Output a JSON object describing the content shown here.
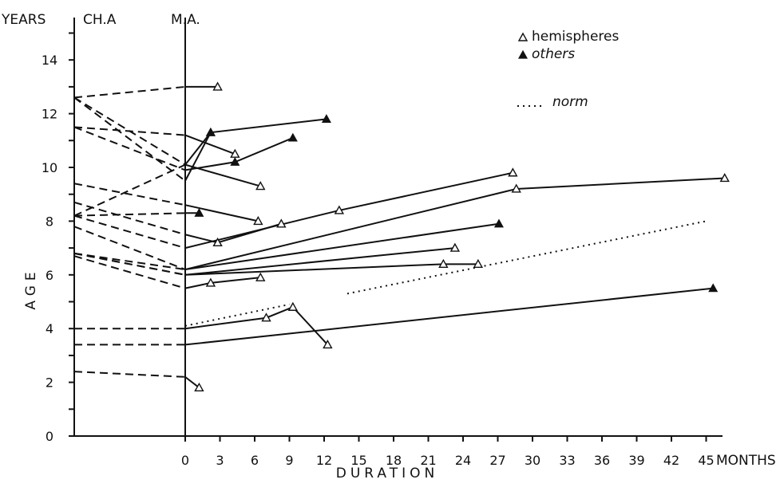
{
  "chart_data": {
    "type": "line",
    "title": "",
    "ylabel": "AGE",
    "ylabel_units": "YEARS",
    "xlabel": "DURATION",
    "xlabel_units": "MONTHS",
    "column_labels": [
      "CH.A",
      "M.A."
    ],
    "ylim": [
      0,
      15
    ],
    "yticks": [
      "0",
      "2",
      "4",
      "6",
      "8",
      "10",
      "12",
      "14"
    ],
    "xlim": [
      0,
      47
    ],
    "xticks": [
      "0",
      "3",
      "6",
      "9",
      "12",
      "15",
      "18",
      "21",
      "24",
      "27",
      "30",
      "33",
      "36",
      "39",
      "42",
      "45"
    ],
    "legend": {
      "position": "top-right",
      "hemispheres": "hemispheres",
      "others": "others",
      "norm": "norm"
    },
    "patients": [
      {
        "ch_a": 12.6,
        "m_a": 13.0,
        "followup": [
          {
            "month": 2.8,
            "age": 13.0,
            "marker": "hemispheres"
          }
        ]
      },
      {
        "ch_a": 12.6,
        "m_a": 10.1,
        "followup": [
          {
            "month": 2.2,
            "age": 11.3,
            "marker": "others"
          },
          {
            "month": 12.2,
            "age": 11.8,
            "marker": "others"
          }
        ]
      },
      {
        "ch_a": 12.6,
        "m_a": 9.5,
        "followup": [
          {
            "month": 2.2,
            "age": 11.3,
            "marker": "others"
          }
        ]
      },
      {
        "ch_a": 11.5,
        "m_a": 11.2,
        "followup": [
          {
            "month": 4.3,
            "age": 10.5,
            "marker": "hemispheres"
          }
        ]
      },
      {
        "ch_a": 11.5,
        "m_a": 9.9,
        "followup": [
          {
            "month": 4.3,
            "age": 10.2,
            "marker": "others"
          },
          {
            "month": 9.3,
            "age": 11.1,
            "marker": "others"
          }
        ]
      },
      {
        "ch_a": 8.2,
        "m_a": 10.1,
        "followup": [
          {
            "month": 6.5,
            "age": 9.3,
            "marker": "hemispheres"
          }
        ]
      },
      {
        "ch_a": 9.4,
        "m_a": 8.6,
        "followup": [
          {
            "month": 6.3,
            "age": 8.0,
            "marker": "hemispheres"
          }
        ]
      },
      {
        "ch_a": 8.2,
        "m_a": 8.3,
        "followup": [
          {
            "month": 1.2,
            "age": 8.3,
            "marker": "others"
          }
        ]
      },
      {
        "ch_a": 8.7,
        "m_a": 7.5,
        "followup": [
          {
            "month": 2.8,
            "age": 7.2,
            "marker": "hemispheres"
          },
          {
            "month": 8.3,
            "age": 7.9,
            "marker": "hemispheres"
          }
        ]
      },
      {
        "ch_a": 8.2,
        "m_a": 7.0,
        "followup": [
          {
            "month": 13.3,
            "age": 8.4,
            "marker": "hemispheres"
          },
          {
            "month": 28.3,
            "age": 9.8,
            "marker": "hemispheres"
          }
        ]
      },
      {
        "ch_a": 7.8,
        "m_a": 6.2,
        "followup": [
          {
            "month": 28.6,
            "age": 9.2,
            "marker": "hemispheres"
          },
          {
            "month": 46.6,
            "age": 9.6,
            "marker": "hemispheres"
          }
        ]
      },
      {
        "ch_a": 6.8,
        "m_a": 6.2,
        "followup": [
          {
            "month": 27.1,
            "age": 7.9,
            "marker": "others"
          }
        ]
      },
      {
        "ch_a": 6.8,
        "m_a": 6.0,
        "followup": [
          {
            "month": 23.3,
            "age": 7.0,
            "marker": "hemispheres"
          }
        ]
      },
      {
        "ch_a": 6.8,
        "m_a": 6.0,
        "followup": [
          {
            "month": 22.3,
            "age": 6.4,
            "marker": "hemispheres"
          },
          {
            "month": 25.3,
            "age": 6.4,
            "marker": "hemispheres"
          }
        ]
      },
      {
        "ch_a": 6.7,
        "m_a": 5.5,
        "followup": [
          {
            "month": 2.2,
            "age": 5.7,
            "marker": "hemispheres"
          },
          {
            "month": 6.5,
            "age": 5.9,
            "marker": "hemispheres"
          }
        ]
      },
      {
        "ch_a": 4.0,
        "m_a": 4.0,
        "followup": [
          {
            "month": 7.0,
            "age": 4.4,
            "marker": "hemispheres"
          },
          {
            "month": 9.3,
            "age": 4.8,
            "marker": "hemispheres"
          },
          {
            "month": 12.3,
            "age": 3.4,
            "marker": "hemispheres"
          }
        ]
      },
      {
        "ch_a": 3.4,
        "m_a": 3.4,
        "followup": [
          {
            "month": 45.6,
            "age": 5.5,
            "marker": "others"
          }
        ]
      },
      {
        "ch_a": 2.4,
        "m_a": 2.2,
        "followup": [
          {
            "month": 1.2,
            "age": 1.8,
            "marker": "hemispheres"
          }
        ]
      }
    ],
    "norm_segments": [
      [
        {
          "month": 0,
          "age": 4.1
        },
        {
          "month": 9.0,
          "age": 4.9
        }
      ],
      [
        {
          "month": 14.0,
          "age": 5.3
        },
        {
          "month": 45.0,
          "age": 8.0
        }
      ]
    ]
  }
}
